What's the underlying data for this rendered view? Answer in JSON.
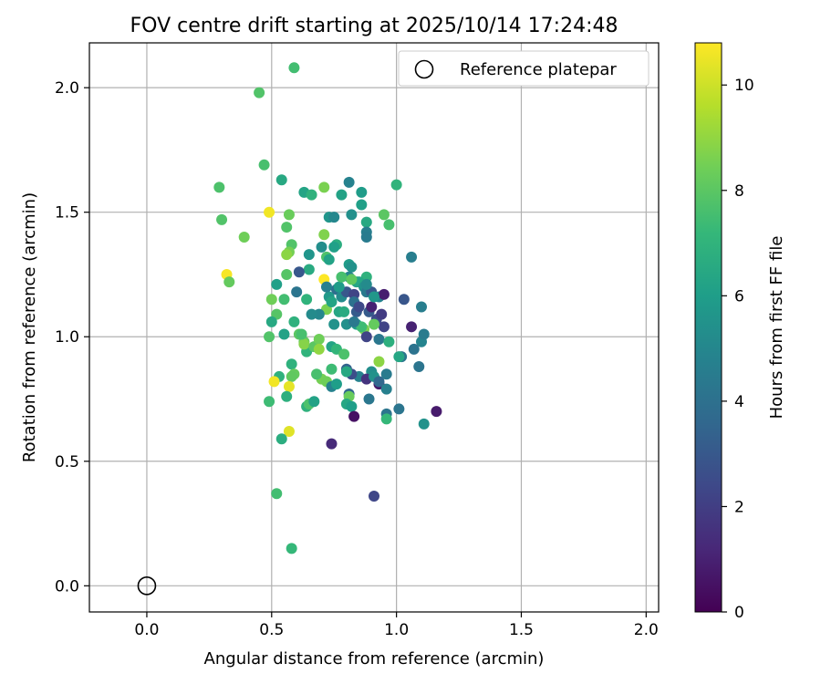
{
  "chart_data": {
    "type": "scatter",
    "title": "FOV centre drift starting at 2025/10/14 17:24:48",
    "xlabel": "Angular distance from reference (arcmin)",
    "ylabel": "Rotation from reference (arcmin)",
    "xlim": [
      -0.23,
      2.05
    ],
    "ylim": [
      -0.105,
      2.18
    ],
    "xticks": [
      0.0,
      0.5,
      1.0,
      1.5,
      2.0
    ],
    "xtick_labels": [
      "0.0",
      "0.5",
      "1.0",
      "1.5",
      "2.0"
    ],
    "yticks": [
      0.0,
      0.5,
      1.0,
      1.5,
      2.0
    ],
    "ytick_labels": [
      "0.0",
      "0.5",
      "1.0",
      "1.5",
      "2.0"
    ],
    "grid": true,
    "legend": {
      "placement": "top-right",
      "entries": [
        "Reference platepar"
      ]
    },
    "reference_point": {
      "x": 0.0,
      "y": 0.0,
      "label": "Reference platepar"
    },
    "colorbar": {
      "label": "Hours from first FF file",
      "range": [
        0,
        10.8
      ],
      "ticks": [
        0,
        2,
        4,
        6,
        8,
        10
      ],
      "tick_labels": [
        "0",
        "2",
        "4",
        "6",
        "8",
        "10"
      ],
      "colormap": [
        "#440154",
        "#482878",
        "#3e4989",
        "#31688e",
        "#26828e",
        "#1f9e89",
        "#35b779",
        "#6ece58",
        "#b5de2b",
        "#fde725"
      ]
    },
    "points": [
      [
        0.59,
        2.08,
        7.5
      ],
      [
        0.45,
        1.98,
        7.8
      ],
      [
        0.47,
        1.69,
        7.6
      ],
      [
        0.29,
        1.6,
        7.7
      ],
      [
        0.3,
        1.47,
        7.8
      ],
      [
        0.39,
        1.4,
        8.4
      ],
      [
        0.32,
        1.25,
        10.7
      ],
      [
        0.33,
        1.22,
        8.2
      ],
      [
        0.49,
        1.5,
        10.6
      ],
      [
        0.54,
        1.63,
        6.5
      ],
      [
        0.63,
        1.58,
        6.3
      ],
      [
        0.66,
        1.57,
        6.9
      ],
      [
        0.71,
        1.6,
        8.6
      ],
      [
        0.78,
        1.57,
        6.2
      ],
      [
        0.81,
        1.62,
        4.8
      ],
      [
        0.86,
        1.58,
        5.9
      ],
      [
        1.0,
        1.61,
        7.0
      ],
      [
        0.57,
        1.49,
        8.3
      ],
      [
        0.56,
        1.44,
        7.8
      ],
      [
        0.73,
        1.48,
        5.6
      ],
      [
        0.75,
        1.48,
        5.0
      ],
      [
        0.82,
        1.49,
        5.4
      ],
      [
        0.86,
        1.53,
        6.1
      ],
      [
        0.88,
        1.46,
        6.5
      ],
      [
        0.88,
        1.42,
        4.6
      ],
      [
        0.88,
        1.4,
        4.5
      ],
      [
        0.95,
        1.49,
        8.0
      ],
      [
        0.97,
        1.45,
        7.6
      ],
      [
        0.58,
        1.37,
        7.8
      ],
      [
        0.57,
        1.34,
        8.5
      ],
      [
        0.56,
        1.33,
        8.9
      ],
      [
        0.65,
        1.33,
        5.6
      ],
      [
        0.7,
        1.36,
        5.3
      ],
      [
        0.72,
        1.32,
        7.7
      ],
      [
        0.73,
        1.31,
        6.2
      ],
      [
        0.76,
        1.37,
        6.7
      ],
      [
        0.75,
        1.36,
        6.1
      ],
      [
        0.71,
        1.41,
        8.7
      ],
      [
        0.81,
        1.29,
        5.9
      ],
      [
        0.82,
        1.28,
        5.5
      ],
      [
        0.81,
        1.24,
        4.9
      ],
      [
        0.84,
        1.22,
        6.2
      ],
      [
        0.88,
        1.24,
        6.9
      ],
      [
        0.85,
        1.22,
        6.4
      ],
      [
        0.71,
        1.23,
        10.8
      ],
      [
        0.65,
        1.27,
        6.6
      ],
      [
        0.61,
        1.26,
        3.0
      ],
      [
        0.56,
        1.25,
        7.9
      ],
      [
        0.52,
        1.21,
        6.1
      ],
      [
        0.6,
        1.18,
        4.2
      ],
      [
        0.64,
        1.15,
        7.0
      ],
      [
        0.55,
        1.15,
        7.5
      ],
      [
        0.5,
        1.15,
        8.4
      ],
      [
        0.52,
        1.09,
        7.9
      ],
      [
        0.5,
        1.06,
        6.5
      ],
      [
        0.59,
        1.06,
        6.9
      ],
      [
        0.61,
        1.01,
        8.0
      ],
      [
        0.55,
        1.01,
        6.2
      ],
      [
        0.49,
        1.0,
        7.8
      ],
      [
        0.63,
        0.98,
        8.2
      ],
      [
        0.64,
        0.94,
        7.0
      ],
      [
        0.63,
        0.97,
        8.8
      ],
      [
        0.67,
        0.96,
        8.0
      ],
      [
        0.69,
        0.99,
        8.4
      ],
      [
        0.69,
        0.95,
        9.0
      ],
      [
        0.74,
        0.96,
        6.3
      ],
      [
        0.76,
        0.95,
        7.1
      ],
      [
        0.79,
        0.93,
        7.7
      ],
      [
        0.72,
        1.11,
        8.6
      ],
      [
        0.73,
        1.16,
        5.8
      ],
      [
        0.69,
        1.09,
        5.0
      ],
      [
        0.75,
        1.05,
        5.5
      ],
      [
        0.76,
        1.19,
        3.9
      ],
      [
        0.77,
        1.1,
        6.4
      ],
      [
        0.78,
        1.16,
        5.2
      ],
      [
        0.8,
        1.18,
        3.0
      ],
      [
        0.83,
        1.17,
        2.2
      ],
      [
        0.83,
        1.14,
        4.0
      ],
      [
        0.84,
        1.1,
        3.1
      ],
      [
        0.85,
        1.12,
        2.4
      ],
      [
        0.87,
        1.2,
        5.5
      ],
      [
        0.88,
        1.18,
        4.4
      ],
      [
        0.89,
        1.1,
        3.1
      ],
      [
        0.9,
        1.12,
        1.0
      ],
      [
        0.9,
        1.18,
        3.0
      ],
      [
        0.92,
        1.07,
        2.5
      ],
      [
        0.93,
        1.16,
        4.9
      ],
      [
        0.95,
        1.17,
        0.9
      ],
      [
        0.94,
        1.09,
        1.9
      ],
      [
        0.95,
        1.04,
        2.2
      ],
      [
        0.84,
        1.05,
        6.0
      ],
      [
        0.8,
        1.05,
        5.4
      ],
      [
        0.87,
        1.03,
        8.6
      ],
      [
        0.88,
        1.0,
        2.2
      ],
      [
        0.91,
        1.05,
        8.2
      ],
      [
        0.93,
        0.99,
        4.3
      ],
      [
        0.97,
        0.98,
        6.8
      ],
      [
        1.03,
        1.15,
        2.9
      ],
      [
        1.06,
        1.32,
        4.6
      ],
      [
        1.06,
        1.04,
        1.0
      ],
      [
        1.1,
        1.12,
        4.6
      ],
      [
        1.1,
        0.98,
        4.9
      ],
      [
        1.11,
        1.01,
        4.5
      ],
      [
        1.07,
        0.95,
        4.1
      ],
      [
        1.02,
        0.92,
        4.2
      ],
      [
        1.01,
        0.92,
        6.4
      ],
      [
        0.93,
        0.9,
        8.9
      ],
      [
        0.9,
        0.86,
        5.3
      ],
      [
        0.85,
        0.84,
        4.8
      ],
      [
        0.88,
        0.83,
        1.6
      ],
      [
        0.82,
        0.85,
        2.6
      ],
      [
        0.8,
        0.87,
        3.4
      ],
      [
        0.8,
        0.86,
        6.5
      ],
      [
        0.74,
        0.87,
        7.4
      ],
      [
        0.7,
        0.83,
        8.5
      ],
      [
        0.68,
        0.85,
        7.6
      ],
      [
        0.72,
        0.82,
        8.4
      ],
      [
        0.74,
        0.8,
        4.8
      ],
      [
        0.76,
        0.81,
        6.0
      ],
      [
        0.81,
        0.77,
        3.6
      ],
      [
        0.81,
        0.76,
        8.3
      ],
      [
        0.8,
        0.73,
        6.4
      ],
      [
        0.82,
        0.72,
        6.0
      ],
      [
        0.83,
        0.68,
        0.5
      ],
      [
        0.89,
        0.75,
        4.3
      ],
      [
        0.91,
        0.84,
        5.5
      ],
      [
        0.93,
        0.81,
        0.7
      ],
      [
        0.93,
        0.82,
        3.6
      ],
      [
        0.96,
        0.85,
        4.5
      ],
      [
        0.96,
        0.79,
        4.7
      ],
      [
        0.96,
        0.69,
        4.2
      ],
      [
        0.96,
        0.67,
        7.2
      ],
      [
        1.01,
        0.71,
        4.2
      ],
      [
        1.09,
        0.88,
        4.2
      ],
      [
        1.11,
        0.65,
        5.5
      ],
      [
        1.16,
        0.7,
        0.8
      ],
      [
        0.74,
        0.57,
        1.3
      ],
      [
        0.91,
        0.36,
        2.3
      ],
      [
        0.58,
        0.89,
        6.9
      ],
      [
        0.59,
        0.85,
        8.2
      ],
      [
        0.58,
        0.84,
        8.1
      ],
      [
        0.53,
        0.84,
        6.9
      ],
      [
        0.51,
        0.82,
        10.6
      ],
      [
        0.57,
        0.8,
        10.4
      ],
      [
        0.56,
        0.76,
        6.8
      ],
      [
        0.49,
        0.74,
        7.4
      ],
      [
        0.64,
        0.72,
        6.9
      ],
      [
        0.65,
        0.73,
        7.7
      ],
      [
        0.67,
        0.74,
        6.2
      ],
      [
        0.57,
        0.62,
        10.3
      ],
      [
        0.54,
        0.59,
        6.7
      ],
      [
        0.52,
        0.37,
        7.5
      ],
      [
        0.58,
        0.15,
        7.2
      ],
      [
        0.66,
        1.09,
        5.2
      ],
      [
        0.62,
        1.01,
        7.6
      ],
      [
        0.79,
        1.1,
        6.6
      ],
      [
        0.86,
        1.04,
        7.4
      ],
      [
        0.83,
        1.06,
        4.4
      ],
      [
        0.77,
        1.2,
        5.9
      ],
      [
        0.72,
        1.2,
        4.7
      ],
      [
        0.74,
        1.14,
        6.3
      ],
      [
        0.88,
        1.21,
        5.2
      ],
      [
        0.91,
        1.16,
        5.7
      ],
      [
        0.78,
        1.24,
        7.6
      ],
      [
        0.82,
        1.23,
        8.1
      ]
    ]
  }
}
